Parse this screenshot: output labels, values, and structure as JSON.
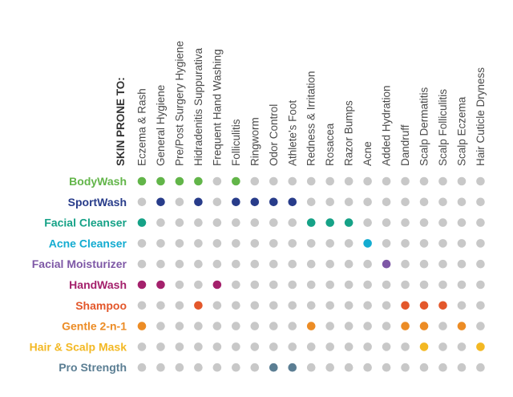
{
  "chart_data": {
    "type": "dot-matrix",
    "title": "",
    "column_header": "SKIN PRONE TO:",
    "inactive_color": "#c8c8c8",
    "columns": [
      "Eczema & Rash",
      "General Hygiene",
      "Pre/Post Surgery Hygiene",
      "Hidradenitis Suppurativa",
      "Frequent Hand Washing",
      "Folliculitis",
      "Ringworm",
      "Odor Control",
      "Athlete's Foot",
      "Redness & Irritation",
      "Rosacea",
      "Razor Bumps",
      "Acne",
      "Added Hydration",
      "Dandruff",
      "Scalp Dermatitis",
      "Scalp Folliculitis",
      "Scalp Eczema",
      "Hair Cuticle Dryness"
    ],
    "rows": [
      {
        "label": "BodyWash",
        "color": "#62b549",
        "values": [
          1,
          1,
          1,
          1,
          0,
          1,
          0,
          0,
          0,
          0,
          0,
          0,
          0,
          0,
          0,
          0,
          0,
          0,
          0
        ]
      },
      {
        "label": "SportWash",
        "color": "#283c8a",
        "values": [
          0,
          1,
          0,
          1,
          0,
          1,
          1,
          1,
          1,
          0,
          0,
          0,
          0,
          0,
          0,
          0,
          0,
          0,
          0
        ]
      },
      {
        "label": "Facial Cleanser",
        "color": "#16a287",
        "values": [
          1,
          0,
          0,
          0,
          0,
          0,
          0,
          0,
          0,
          1,
          1,
          1,
          0,
          0,
          0,
          0,
          0,
          0,
          0
        ]
      },
      {
        "label": "Acne Cleanser",
        "color": "#14acd1",
        "values": [
          0,
          0,
          0,
          0,
          0,
          0,
          0,
          0,
          0,
          0,
          0,
          0,
          1,
          0,
          0,
          0,
          0,
          0,
          0
        ]
      },
      {
        "label": "Facial Moisturizer",
        "color": "#7e58a6",
        "values": [
          0,
          0,
          0,
          0,
          0,
          0,
          0,
          0,
          0,
          0,
          0,
          0,
          0,
          1,
          0,
          0,
          0,
          0,
          0
        ]
      },
      {
        "label": "HandWash",
        "color": "#a4216c",
        "values": [
          1,
          1,
          0,
          0,
          1,
          0,
          0,
          0,
          0,
          0,
          0,
          0,
          0,
          0,
          0,
          0,
          0,
          0,
          0
        ]
      },
      {
        "label": "Shampoo",
        "color": "#e3572b",
        "values": [
          0,
          0,
          0,
          1,
          0,
          0,
          0,
          0,
          0,
          0,
          0,
          0,
          0,
          0,
          1,
          1,
          1,
          0,
          0
        ]
      },
      {
        "label": "Gentle 2-n-1",
        "color": "#ec8c25",
        "values": [
          1,
          0,
          0,
          0,
          0,
          0,
          0,
          0,
          0,
          1,
          0,
          0,
          0,
          0,
          1,
          1,
          0,
          1,
          0
        ]
      },
      {
        "label": "Hair & Scalp Mask",
        "color": "#f3b823",
        "values": [
          0,
          0,
          0,
          0,
          0,
          0,
          0,
          0,
          0,
          0,
          0,
          0,
          0,
          0,
          0,
          1,
          0,
          0,
          1
        ]
      },
      {
        "label": "Pro Strength",
        "color": "#5b7e93",
        "values": [
          0,
          0,
          0,
          0,
          0,
          0,
          0,
          1,
          1,
          0,
          0,
          0,
          0,
          0,
          0,
          0,
          0,
          0,
          0
        ]
      }
    ]
  }
}
